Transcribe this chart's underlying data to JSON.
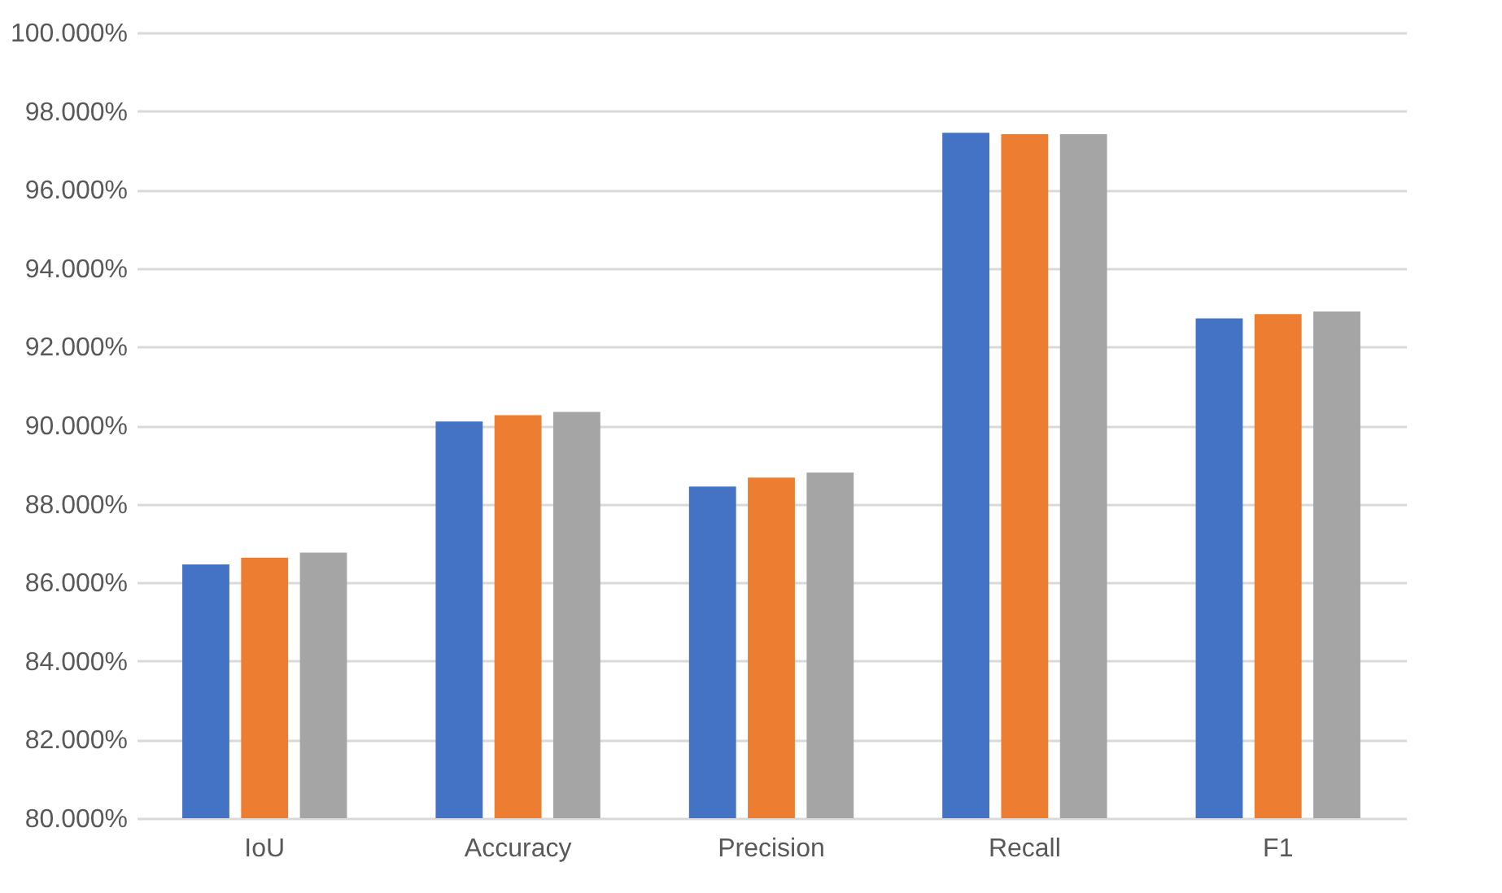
{
  "chart_data": {
    "type": "bar",
    "categories": [
      "IoU",
      "Accuracy",
      "Precision",
      "Recall",
      "F1"
    ],
    "series": [
      {
        "color": "#4472c4",
        "values": [
          86.46,
          90.1,
          88.44,
          97.45,
          92.72
        ]
      },
      {
        "color": "#ed7d31",
        "values": [
          86.63,
          90.26,
          88.67,
          97.41,
          92.83
        ]
      },
      {
        "color": "#a5a5a5",
        "values": [
          86.76,
          90.34,
          88.8,
          97.41,
          92.9
        ]
      }
    ],
    "ylim": [
      80,
      100
    ],
    "yticks": [
      {
        "value": 80,
        "label": "80.000%"
      },
      {
        "value": 82,
        "label": "82.000%"
      },
      {
        "value": 84,
        "label": "84.000%"
      },
      {
        "value": 86,
        "label": "86.000%"
      },
      {
        "value": 88,
        "label": "88.000%"
      },
      {
        "value": 90,
        "label": "90.000%"
      },
      {
        "value": 92,
        "label": "92.000%"
      },
      {
        "value": 94,
        "label": "94.000%"
      },
      {
        "value": 96,
        "label": "96.000%"
      },
      {
        "value": 98,
        "label": "98.000%"
      },
      {
        "value": 100,
        "label": "100.000%"
      }
    ],
    "grid": "y"
  }
}
